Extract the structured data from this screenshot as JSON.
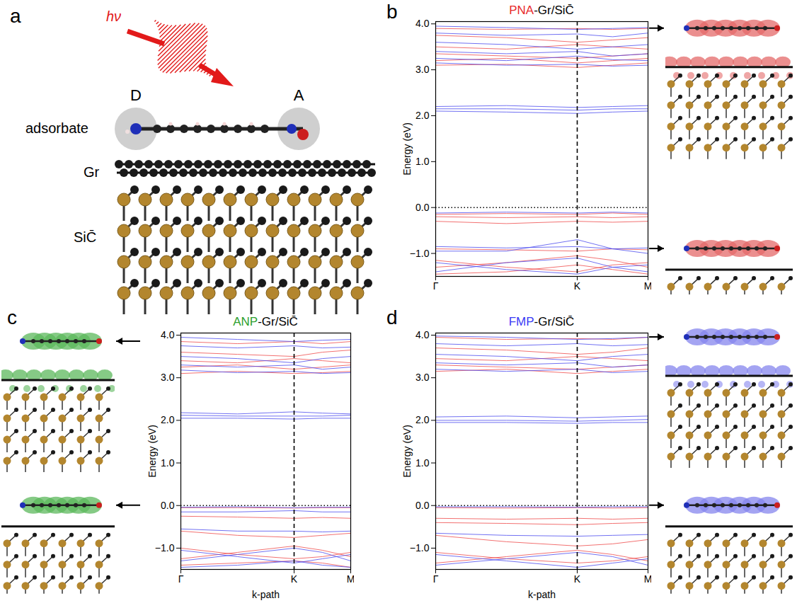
{
  "panel_a": {
    "letter": "a",
    "photon": "hν",
    "donor": "D",
    "acceptor": "A",
    "labels": [
      "adsorbate",
      "Gr",
      "SiC̄"
    ]
  },
  "chart_data": [
    {
      "type": "line",
      "letter": "b",
      "title": "PNA-Gr/SiC̄",
      "title_highlight": "PNA",
      "title_color": "#e8282a",
      "ylabel": "Energy (eV)",
      "x": [
        0,
        0.5,
        1,
        1.25,
        1.5
      ],
      "xlim": [
        0,
        1.5
      ],
      "xticks": [
        {
          "value": 0,
          "label": "Γ"
        },
        {
          "value": 1,
          "label": "K"
        },
        {
          "value": 1.5,
          "label": "M"
        }
      ],
      "ylim": [
        -1.5,
        4.05
      ],
      "yticks": [
        -1,
        0,
        1,
        2,
        3,
        4
      ],
      "reference_lines": [
        {
          "axis": "y",
          "value": 0,
          "line_style": "dotted"
        },
        {
          "axis": "x",
          "value": 1,
          "line_style": "dashed"
        }
      ],
      "arrows": [
        3.9,
        -0.9
      ],
      "series": [
        {
          "color": "#ee4444",
          "values": [
            3.9,
            3.88,
            3.9,
            3.88,
            3.9
          ]
        },
        {
          "color": "#ee4444",
          "values": [
            3.75,
            3.7,
            3.6,
            3.65,
            3.7
          ]
        },
        {
          "color": "#ee4444",
          "values": [
            3.5,
            3.45,
            3.55,
            3.5,
            3.45
          ]
        },
        {
          "color": "#ee4444",
          "values": [
            3.35,
            3.3,
            3.25,
            3.3,
            3.35
          ]
        },
        {
          "color": "#ee4444",
          "values": [
            3.2,
            3.25,
            3.15,
            3.2,
            3.25
          ]
        },
        {
          "color": "#ee4444",
          "values": [
            3.1,
            3.12,
            3.05,
            3.1,
            3.15
          ]
        },
        {
          "color": "#ee4444",
          "values": [
            -0.15,
            -0.13,
            -0.15,
            -0.12,
            -0.15
          ]
        },
        {
          "color": "#ee4444",
          "values": [
            -0.2,
            -0.22,
            -0.2,
            -0.22,
            -0.2
          ]
        },
        {
          "color": "#ee4444",
          "values": [
            -0.3,
            -0.35,
            -0.3,
            -0.32,
            -0.3
          ]
        },
        {
          "color": "#ee4444",
          "values": [
            -0.9,
            -0.92,
            -0.95,
            -0.9,
            -0.92
          ]
        },
        {
          "color": "#ee4444",
          "values": [
            -1.15,
            -1.3,
            -1.4,
            -1.25,
            -1.2
          ]
        },
        {
          "color": "#ee4444",
          "values": [
            -1.3,
            -1.2,
            -1.05,
            -1.15,
            -1.3
          ]
        },
        {
          "color": "#ee4444",
          "values": [
            -1.45,
            -1.4,
            -1.25,
            -1.35,
            -1.45
          ]
        },
        {
          "color": "#4444ee",
          "values": [
            3.95,
            3.92,
            3.88,
            3.9,
            3.92
          ]
        },
        {
          "color": "#4444ee",
          "values": [
            3.8,
            3.75,
            3.78,
            3.72,
            3.8
          ]
        },
        {
          "color": "#4444ee",
          "values": [
            3.6,
            3.55,
            3.45,
            3.5,
            3.55
          ]
        },
        {
          "color": "#4444ee",
          "values": [
            3.4,
            3.35,
            3.4,
            3.3,
            3.35
          ]
        },
        {
          "color": "#4444ee",
          "values": [
            3.25,
            3.2,
            3.3,
            3.22,
            3.2
          ]
        },
        {
          "color": "#4444ee",
          "values": [
            3.15,
            3.1,
            3.12,
            3.08,
            3.1
          ]
        },
        {
          "color": "#4444ee",
          "values": [
            2.2,
            2.22,
            2.18,
            2.2,
            2.22
          ]
        },
        {
          "color": "#4444ee",
          "values": [
            2.15,
            2.15,
            2.12,
            2.15,
            2.15
          ]
        },
        {
          "color": "#4444ee",
          "values": [
            2.1,
            2.08,
            2.05,
            2.08,
            2.1
          ]
        },
        {
          "color": "#4444ee",
          "values": [
            -0.12,
            -0.1,
            -0.12,
            -0.1,
            -0.12
          ]
        },
        {
          "color": "#4444ee",
          "values": [
            -0.85,
            -0.88,
            -0.85,
            -0.9,
            -0.88
          ]
        },
        {
          "color": "#4444ee",
          "values": [
            -0.95,
            -0.95,
            -0.7,
            -0.9,
            -1.0
          ]
        },
        {
          "color": "#4444ee",
          "values": [
            -1.2,
            -1.35,
            -1.45,
            -1.3,
            -1.25
          ]
        },
        {
          "color": "#4444ee",
          "values": [
            -1.4,
            -1.2,
            -1.1,
            -1.3,
            -1.4
          ]
        }
      ]
    },
    {
      "type": "line",
      "letter": "c",
      "title": "ANP-Gr/SiC̄",
      "title_highlight": "ANP",
      "title_color": "#2ca02c",
      "xlabel": "k-path",
      "ylabel": "Energy (eV)",
      "x": [
        0,
        0.5,
        1,
        1.25,
        1.5
      ],
      "xlim": [
        0,
        1.5
      ],
      "xticks": [
        {
          "value": 0,
          "label": "Γ"
        },
        {
          "value": 1,
          "label": "K"
        },
        {
          "value": 1.5,
          "label": "M"
        }
      ],
      "ylim": [
        -1.5,
        4.05
      ],
      "yticks": [
        -1,
        0,
        1,
        2,
        3,
        4
      ],
      "reference_lines": [
        {
          "axis": "y",
          "value": 0,
          "line_style": "dotted"
        },
        {
          "axis": "x",
          "value": 1,
          "line_style": "dashed"
        }
      ],
      "arrows": [
        3.85,
        0
      ],
      "series": [
        {
          "color": "#ee4444",
          "values": [
            3.85,
            3.8,
            3.85,
            3.8,
            3.85
          ]
        },
        {
          "color": "#ee4444",
          "values": [
            3.6,
            3.55,
            3.5,
            3.6,
            3.65
          ]
        },
        {
          "color": "#ee4444",
          "values": [
            3.4,
            3.35,
            3.45,
            3.4,
            3.35
          ]
        },
        {
          "color": "#ee4444",
          "values": [
            3.25,
            3.3,
            3.2,
            3.25,
            3.3
          ]
        },
        {
          "color": "#ee4444",
          "values": [
            3.1,
            3.15,
            3.1,
            3.12,
            3.15
          ]
        },
        {
          "color": "#ee4444",
          "values": [
            -0.05,
            -0.05,
            -0.06,
            -0.05,
            -0.05
          ]
        },
        {
          "color": "#ee4444",
          "values": [
            -0.25,
            -0.27,
            -0.3,
            -0.28,
            -0.3
          ]
        },
        {
          "color": "#ee4444",
          "values": [
            -0.6,
            -0.7,
            -0.75,
            -0.7,
            -0.65
          ]
        },
        {
          "color": "#ee4444",
          "values": [
            -1.0,
            -1.15,
            -1.25,
            -1.2,
            -1.1
          ]
        },
        {
          "color": "#ee4444",
          "values": [
            -1.25,
            -1.1,
            -0.95,
            -1.05,
            -1.2
          ]
        },
        {
          "color": "#ee4444",
          "values": [
            -1.4,
            -1.35,
            -1.3,
            -1.35,
            -1.45
          ]
        },
        {
          "color": "#4444ee",
          "values": [
            3.95,
            3.9,
            3.85,
            3.88,
            3.9
          ]
        },
        {
          "color": "#4444ee",
          "values": [
            3.75,
            3.7,
            3.75,
            3.7,
            3.72
          ]
        },
        {
          "color": "#4444ee",
          "values": [
            3.5,
            3.45,
            3.35,
            3.45,
            3.5
          ]
        },
        {
          "color": "#4444ee",
          "values": [
            3.3,
            3.25,
            3.3,
            3.2,
            3.25
          ]
        },
        {
          "color": "#4444ee",
          "values": [
            3.18,
            3.12,
            3.15,
            3.1,
            3.12
          ]
        },
        {
          "color": "#4444ee",
          "values": [
            2.18,
            2.15,
            2.2,
            2.17,
            2.15
          ]
        },
        {
          "color": "#4444ee",
          "values": [
            2.12,
            2.1,
            2.1,
            2.1,
            2.12
          ]
        },
        {
          "color": "#4444ee",
          "values": [
            2.05,
            2.05,
            2.03,
            2.05,
            2.05
          ]
        },
        {
          "color": "#4444ee",
          "values": [
            -0.04,
            -0.03,
            -0.05,
            -0.04,
            -0.04
          ]
        },
        {
          "color": "#4444ee",
          "values": [
            -0.15,
            -0.15,
            -0.12,
            -0.15,
            -0.15
          ]
        },
        {
          "color": "#4444ee",
          "values": [
            -0.55,
            -0.6,
            -0.6,
            -0.62,
            -0.6
          ]
        },
        {
          "color": "#4444ee",
          "values": [
            -1.05,
            -1.2,
            -1.35,
            -1.25,
            -1.15
          ]
        },
        {
          "color": "#4444ee",
          "values": [
            -1.3,
            -1.15,
            -1.0,
            -1.1,
            -1.3
          ]
        },
        {
          "color": "#4444ee",
          "values": [
            -1.45,
            -1.4,
            -1.3,
            -1.4,
            -1.45
          ]
        }
      ]
    },
    {
      "type": "line",
      "letter": "d",
      "title": "FMP-Gr/SiC̄",
      "title_highlight": "FMP",
      "title_color": "#3b3bf5",
      "xlabel": "k-path",
      "ylabel": "Energy (eV)",
      "x": [
        0,
        0.5,
        1,
        1.25,
        1.5
      ],
      "xlim": [
        0,
        1.5
      ],
      "xticks": [
        {
          "value": 0,
          "label": "Γ"
        },
        {
          "value": 1,
          "label": "K"
        },
        {
          "value": 1.5,
          "label": "M"
        }
      ],
      "ylim": [
        -1.5,
        4.05
      ],
      "yticks": [
        -1,
        0,
        1,
        2,
        3,
        4
      ],
      "reference_lines": [
        {
          "axis": "y",
          "value": 0,
          "line_style": "dotted"
        },
        {
          "axis": "x",
          "value": 1,
          "line_style": "dashed"
        }
      ],
      "arrows": [
        3.95,
        0
      ],
      "series": [
        {
          "color": "#ee4444",
          "values": [
            3.95,
            3.9,
            3.92,
            3.9,
            3.95
          ]
        },
        {
          "color": "#ee4444",
          "values": [
            3.7,
            3.65,
            3.55,
            3.6,
            3.7
          ]
        },
        {
          "color": "#ee4444",
          "values": [
            3.45,
            3.4,
            3.5,
            3.45,
            3.4
          ]
        },
        {
          "color": "#ee4444",
          "values": [
            3.3,
            3.25,
            3.2,
            3.25,
            3.3
          ]
        },
        {
          "color": "#ee4444",
          "values": [
            3.15,
            3.2,
            3.1,
            3.15,
            3.2
          ]
        },
        {
          "color": "#ee4444",
          "values": [
            -0.05,
            -0.06,
            -0.05,
            -0.06,
            -0.05
          ]
        },
        {
          "color": "#ee4444",
          "values": [
            -0.3,
            -0.32,
            -0.3,
            -0.32,
            -0.3
          ]
        },
        {
          "color": "#ee4444",
          "values": [
            -0.4,
            -0.42,
            -0.45,
            -0.42,
            -0.4
          ]
        },
        {
          "color": "#ee4444",
          "values": [
            -0.7,
            -0.85,
            -0.95,
            -0.9,
            -0.8
          ]
        },
        {
          "color": "#ee4444",
          "values": [
            -1.1,
            -1.25,
            -1.35,
            -1.3,
            -1.2
          ]
        },
        {
          "color": "#ee4444",
          "values": [
            -1.35,
            -1.2,
            -1.05,
            -1.15,
            -1.3
          ]
        },
        {
          "color": "#4444ee",
          "values": [
            3.98,
            3.95,
            3.9,
            3.92,
            3.95
          ]
        },
        {
          "color": "#4444ee",
          "values": [
            3.8,
            3.75,
            3.8,
            3.75,
            3.78
          ]
        },
        {
          "color": "#4444ee",
          "values": [
            3.55,
            3.5,
            3.4,
            3.5,
            3.55
          ]
        },
        {
          "color": "#4444ee",
          "values": [
            3.35,
            3.3,
            3.35,
            3.25,
            3.3
          ]
        },
        {
          "color": "#4444ee",
          "values": [
            3.2,
            3.15,
            3.2,
            3.12,
            3.15
          ]
        },
        {
          "color": "#4444ee",
          "values": [
            2.08,
            2.1,
            2.06,
            2.08,
            2.1
          ]
        },
        {
          "color": "#4444ee",
          "values": [
            2.0,
            2.0,
            1.98,
            2.0,
            2.02
          ]
        },
        {
          "color": "#4444ee",
          "values": [
            1.95,
            1.95,
            1.93,
            1.95,
            1.95
          ]
        },
        {
          "color": "#4444ee",
          "values": [
            -0.03,
            -0.03,
            -0.04,
            -0.03,
            -0.03
          ]
        },
        {
          "color": "#4444ee",
          "values": [
            -0.65,
            -0.7,
            -0.72,
            -0.7,
            -0.68
          ]
        },
        {
          "color": "#4444ee",
          "values": [
            -1.15,
            -1.3,
            -1.45,
            -1.35,
            -1.25
          ]
        },
        {
          "color": "#4444ee",
          "values": [
            -1.4,
            -1.25,
            -1.1,
            -1.2,
            -1.4
          ]
        }
      ]
    }
  ]
}
